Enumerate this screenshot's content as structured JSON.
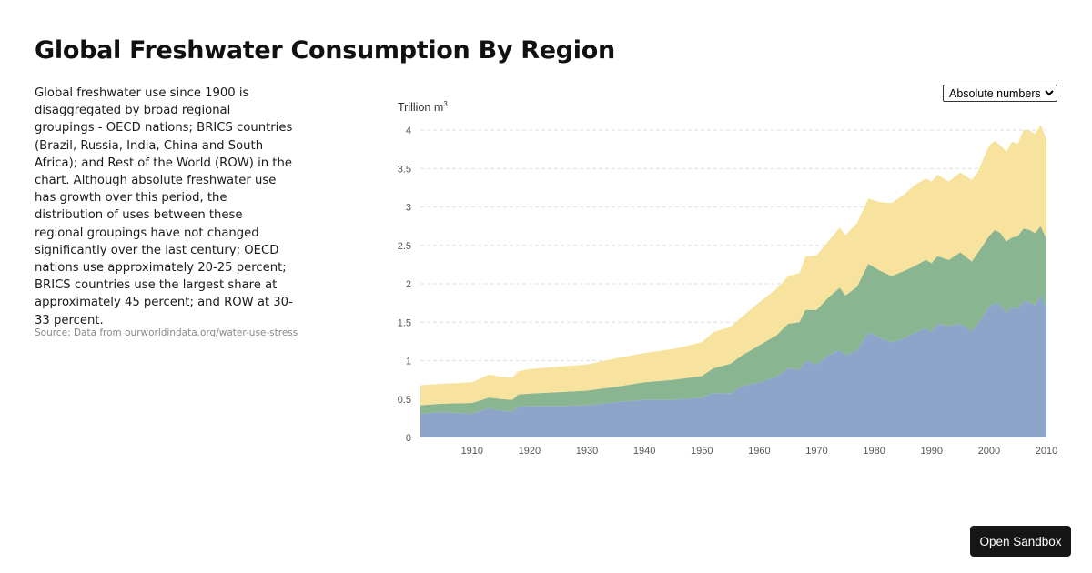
{
  "title": "Global Freshwater Consumption By Region",
  "description": "Global freshwater use since 1900 is disaggregated by broad regional groupings - OECD nations; BRICS countries (Brazil, Russia, India, China and South Africa); and Rest of the World (ROW) in the chart. Although absolute freshwater use has growth over this period, the distribution of uses between these regional groupings have not changed significantly over the last century; OECD nations use approximately 20-25 percent; BRICS countries use the largest share at approximately 45 percent; and ROW at 30-33 percent.",
  "source": {
    "prefix": "Source: Data from ",
    "link": "ourworldindata.org/water-use-stress"
  },
  "mode_select": {
    "selected": "Absolute numbers"
  },
  "sandbox_button": "Open Sandbox",
  "chart_data": {
    "type": "area",
    "stacked": true,
    "ylabel": "Trillion m",
    "ylabel_sup": "3",
    "ylim": [
      0,
      4
    ],
    "xlim": [
      1901,
      2010
    ],
    "yticks": [
      "0",
      "0.5",
      "1",
      "1.5",
      "2",
      "2.5",
      "3",
      "3.5",
      "4"
    ],
    "xticks": [
      "1910",
      "1920",
      "1930",
      "1940",
      "1950",
      "1960",
      "1970",
      "1980",
      "1990",
      "2000",
      "2010"
    ],
    "grid": "horizontal dashed",
    "x": [
      1901,
      1905,
      1910,
      1913,
      1915,
      1917,
      1918,
      1920,
      1925,
      1930,
      1935,
      1940,
      1945,
      1950,
      1952,
      1955,
      1957,
      1960,
      1963,
      1965,
      1967,
      1968,
      1970,
      1972,
      1974,
      1975,
      1977,
      1979,
      1981,
      1983,
      1985,
      1987,
      1989,
      1990,
      1991,
      1993,
      1995,
      1997,
      1998,
      2000,
      2001,
      2002,
      2003,
      2004,
      2005,
      2006,
      2007,
      2008,
      2009,
      2010
    ],
    "series": [
      {
        "color": "#8da5c9",
        "values": [
          0.31,
          0.33,
          0.31,
          0.38,
          0.35,
          0.33,
          0.4,
          0.41,
          0.41,
          0.42,
          0.46,
          0.49,
          0.49,
          0.52,
          0.58,
          0.57,
          0.67,
          0.72,
          0.79,
          0.9,
          0.88,
          1.0,
          0.95,
          1.07,
          1.14,
          1.07,
          1.14,
          1.37,
          1.3,
          1.24,
          1.28,
          1.37,
          1.42,
          1.37,
          1.48,
          1.45,
          1.48,
          1.38,
          1.48,
          1.7,
          1.76,
          1.72,
          1.62,
          1.7,
          1.67,
          1.78,
          1.76,
          1.72,
          1.85,
          1.7
        ]
      },
      {
        "color": "#8ab591",
        "values": [
          0.11,
          0.11,
          0.14,
          0.14,
          0.15,
          0.16,
          0.16,
          0.16,
          0.18,
          0.19,
          0.2,
          0.23,
          0.26,
          0.28,
          0.32,
          0.39,
          0.4,
          0.48,
          0.54,
          0.58,
          0.62,
          0.66,
          0.71,
          0.75,
          0.81,
          0.78,
          0.82,
          0.89,
          0.87,
          0.86,
          0.88,
          0.86,
          0.89,
          0.9,
          0.88,
          0.86,
          0.93,
          0.91,
          0.92,
          0.92,
          0.94,
          0.94,
          0.93,
          0.9,
          0.95,
          0.94,
          0.94,
          0.94,
          0.9,
          0.88
        ]
      },
      {
        "color": "#f7e39d",
        "values": [
          0.26,
          0.26,
          0.27,
          0.3,
          0.29,
          0.29,
          0.3,
          0.32,
          0.33,
          0.34,
          0.37,
          0.38,
          0.4,
          0.44,
          0.47,
          0.48,
          0.5,
          0.56,
          0.6,
          0.62,
          0.64,
          0.69,
          0.71,
          0.73,
          0.78,
          0.78,
          0.83,
          0.85,
          0.89,
          0.95,
          0.99,
          1.05,
          1.06,
          1.06,
          1.06,
          1.02,
          1.04,
          1.06,
          1.05,
          1.18,
          1.16,
          1.14,
          1.17,
          1.25,
          1.2,
          1.28,
          1.3,
          1.29,
          1.32,
          1.3
        ]
      }
    ]
  }
}
